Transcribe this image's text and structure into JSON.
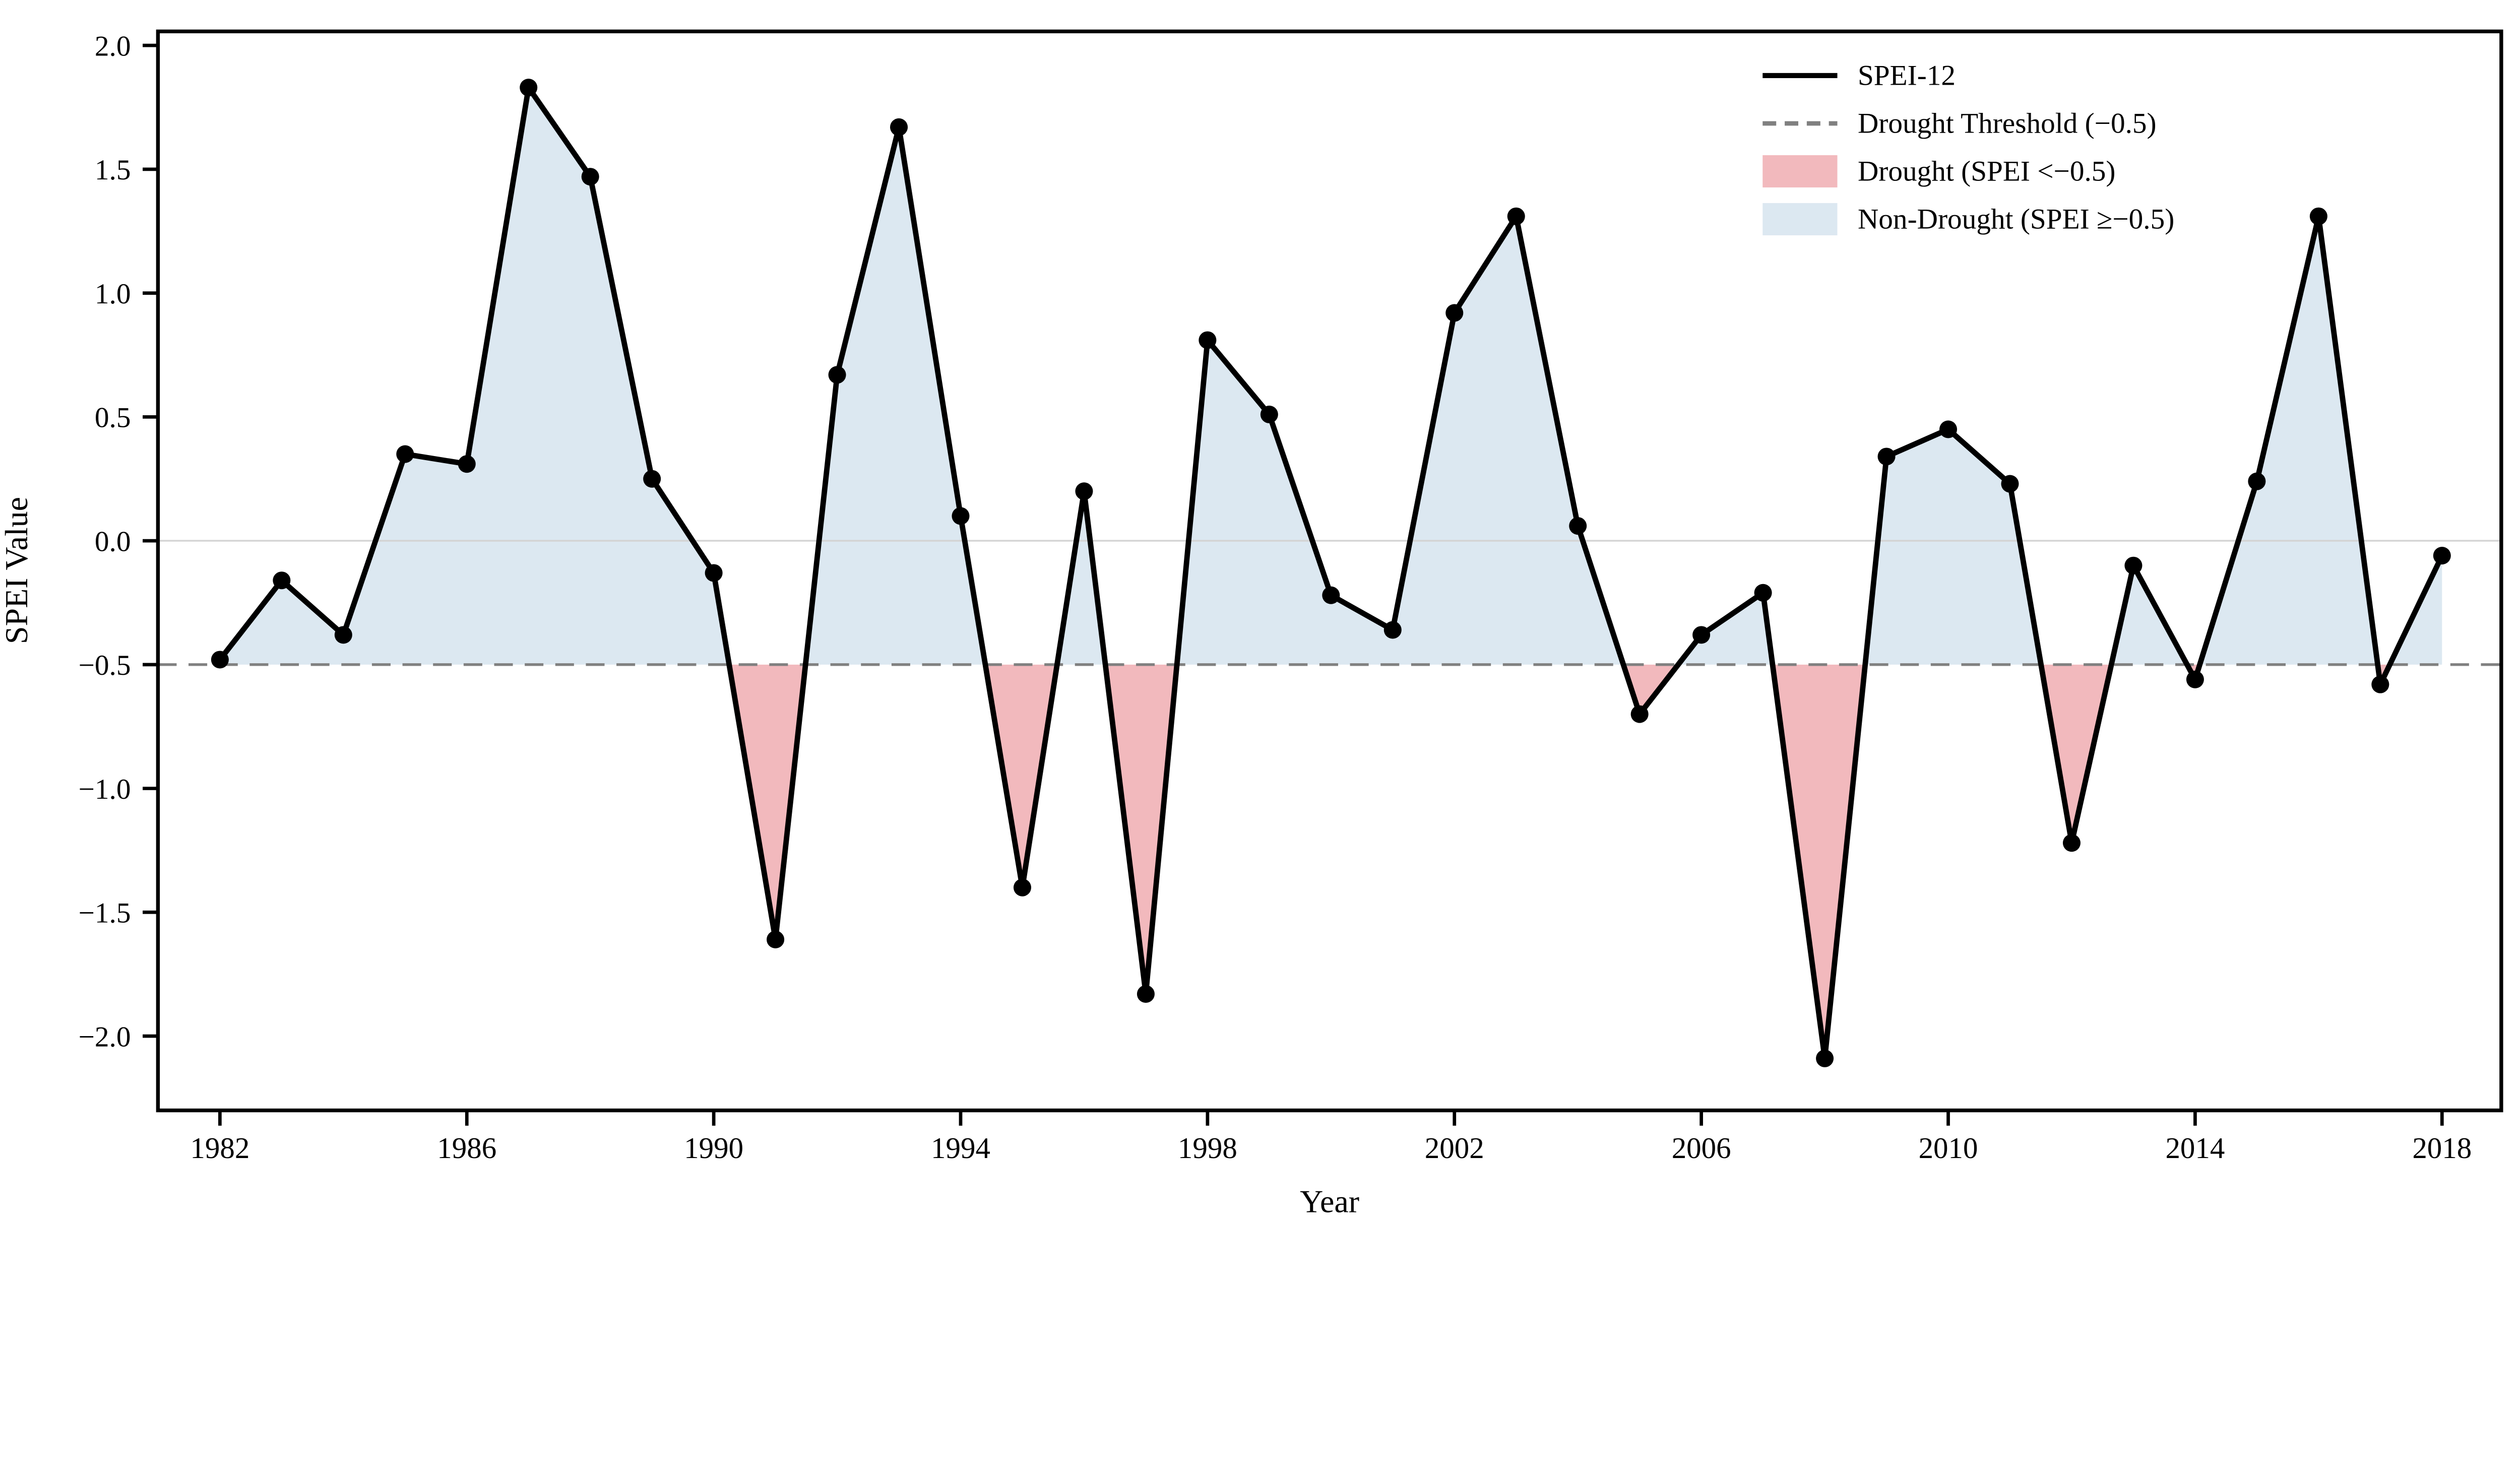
{
  "chart_data": {
    "type": "line",
    "title": "",
    "xlabel": "Year",
    "ylabel": "SPEI Value",
    "x": [
      1982,
      1983,
      1984,
      1985,
      1986,
      1987,
      1988,
      1989,
      1990,
      1991,
      1992,
      1993,
      1994,
      1995,
      1996,
      1997,
      1998,
      1999,
      2000,
      2001,
      2002,
      2003,
      2004,
      2005,
      2006,
      2007,
      2008,
      2009,
      2010,
      2011,
      2012,
      2013,
      2014,
      2015,
      2016,
      2017,
      2018
    ],
    "series": [
      {
        "name": "SPEI-12",
        "values": [
          -0.48,
          -0.16,
          -0.38,
          0.35,
          0.31,
          1.83,
          1.47,
          0.25,
          -0.13,
          -1.61,
          0.67,
          1.67,
          0.1,
          -1.4,
          0.2,
          -1.83,
          0.81,
          0.51,
          -0.22,
          -0.36,
          0.92,
          1.31,
          0.06,
          -0.7,
          -0.38,
          -0.21,
          -2.09,
          0.34,
          0.45,
          0.23,
          -1.22,
          -0.1,
          -0.56,
          0.24,
          1.31,
          -0.58,
          -0.06
        ]
      }
    ],
    "threshold": -0.5,
    "xticks": [
      1982,
      1986,
      1990,
      1994,
      1998,
      2002,
      2006,
      2010,
      2014,
      2018
    ],
    "ytick_labels": [
      "2.0",
      "1.5",
      "1.0",
      "0.5",
      "0.0",
      "−0.5",
      "−1.0",
      "−1.5",
      "−2.0"
    ],
    "ytick_values": [
      2.0,
      1.5,
      1.0,
      0.5,
      0.0,
      -0.5,
      -1.0,
      -1.5,
      -2.0
    ],
    "ylim": [
      -2.3,
      2.06
    ],
    "grid": "horizontal zero-line only",
    "legend": {
      "position": "upper right",
      "items": [
        {
          "label": "SPEI-12",
          "type": "line",
          "color": "#000000"
        },
        {
          "label": "Drought Threshold (−0.5)",
          "type": "dashed-line",
          "color": "#808080"
        },
        {
          "label": "Drought (SPEI <−0.5)",
          "type": "fill",
          "color": "#f2b9bd"
        },
        {
          "label": "Non-Drought (SPEI ≥−0.5)",
          "type": "fill",
          "color": "#dce8f1"
        }
      ]
    },
    "colors": {
      "line": "#000000",
      "marker": "#000000",
      "threshold": "#808080",
      "drought_fill": "#f2b9bd",
      "nondrought_fill": "#dce8f1",
      "zero_gridline": "#d3d3d3",
      "axis": "#000000",
      "background": "#ffffff"
    }
  }
}
